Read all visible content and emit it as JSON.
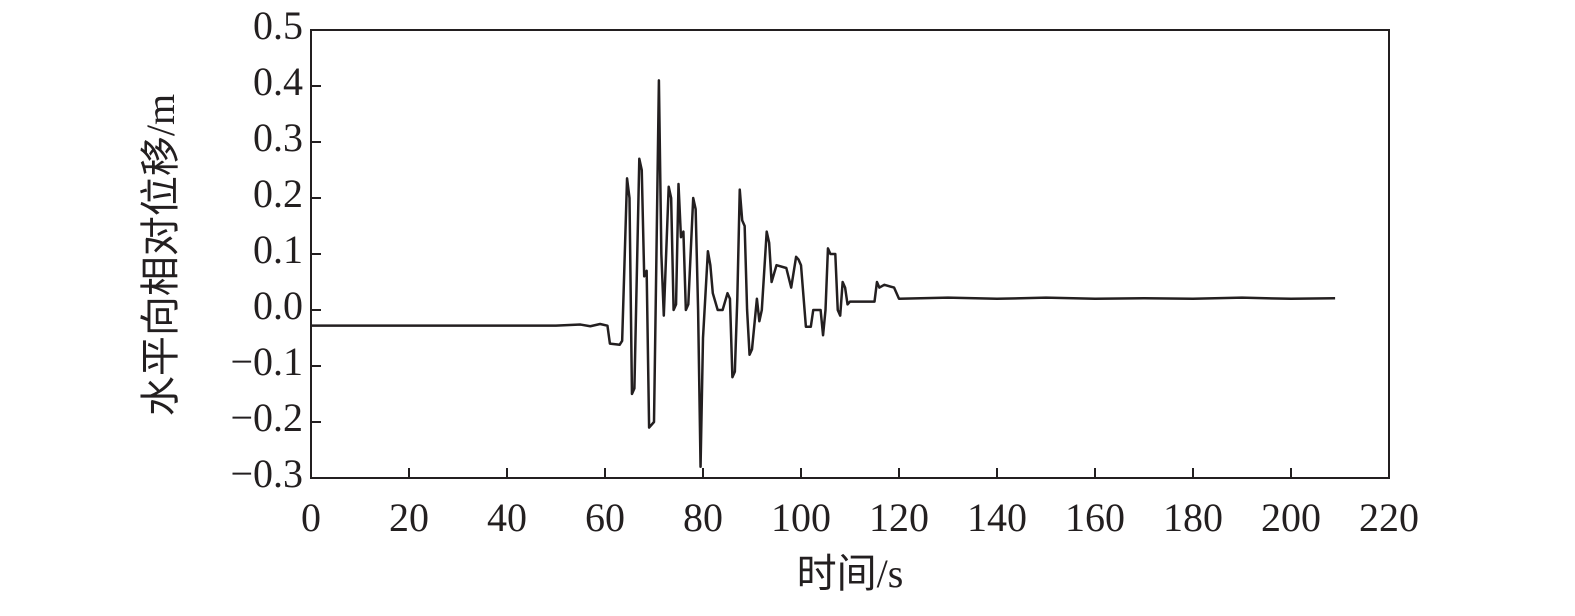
{
  "chart_data": {
    "type": "line",
    "xlabel": "时间/s",
    "ylabel": "水平向相对位移/m",
    "color": "#231f20",
    "xlim": [
      0,
      220
    ],
    "xticks": [
      0,
      20,
      40,
      60,
      80,
      100,
      120,
      140,
      160,
      180,
      200,
      220
    ],
    "ylim": [
      -0.3,
      0.5
    ],
    "yticks": [
      {
        "value": -0.3,
        "label": "−0.3"
      },
      {
        "value": -0.2,
        "label": "−0.2"
      },
      {
        "value": -0.1,
        "label": "−0.1"
      },
      {
        "value": 0,
        "label": "0.0"
      },
      0.1,
      0.2,
      0.3,
      0.4,
      0.5
    ],
    "x": [
      0,
      50,
      55,
      57,
      59,
      60.5,
      61,
      63,
      63.5,
      64.5,
      65,
      65.5,
      66,
      67,
      67.5,
      68,
      68.5,
      69,
      70,
      70.5,
      71,
      71.5,
      72,
      73,
      73.5,
      74,
      74.5,
      75,
      75.5,
      76,
      76.5,
      77,
      78,
      78.5,
      79,
      79.5,
      80,
      81,
      81.5,
      82,
      83,
      84,
      85,
      85.5,
      86,
      86.5,
      87,
      87.5,
      88,
      88.5,
      89,
      89.5,
      90,
      91,
      91.5,
      92,
      93,
      93.5,
      94,
      95,
      97,
      98,
      99,
      99.5,
      100,
      101,
      102,
      102.5,
      104,
      104.5,
      105,
      105.5,
      106,
      107,
      107.5,
      108,
      108.5,
      109,
      109.5,
      110,
      115,
      115.5,
      116,
      117,
      119,
      120,
      130,
      140,
      150,
      160,
      170,
      180,
      190,
      200,
      209
    ],
    "values": [
      -0.028,
      -0.028,
      -0.026,
      -0.029,
      -0.025,
      -0.028,
      -0.06,
      -0.062,
      -0.055,
      0.235,
      0.2,
      -0.15,
      -0.14,
      0.27,
      0.25,
      0.06,
      0.07,
      -0.21,
      -0.2,
      0.1,
      0.41,
      0.1,
      -0.01,
      0.22,
      0.2,
      0.0,
      0.01,
      0.225,
      0.13,
      0.14,
      0.0,
      0.01,
      0.2,
      0.18,
      0.0,
      -0.28,
      -0.05,
      0.105,
      0.08,
      0.03,
      0.0,
      0.0,
      0.03,
      0.02,
      -0.12,
      -0.11,
      0.02,
      0.215,
      0.16,
      0.15,
      0.0,
      -0.08,
      -0.07,
      0.02,
      -0.02,
      0.0,
      0.14,
      0.12,
      0.05,
      0.08,
      0.075,
      0.04,
      0.095,
      0.09,
      0.08,
      -0.03,
      -0.03,
      0.0,
      0.0,
      -0.045,
      0.0,
      0.11,
      0.1,
      0.1,
      0.0,
      -0.01,
      0.05,
      0.04,
      0.01,
      0.015,
      0.015,
      0.05,
      0.04,
      0.045,
      0.04,
      0.02,
      0.022,
      0.02,
      0.022,
      0.02,
      0.021,
      0.02,
      0.022,
      0.02,
      0.021
    ]
  }
}
